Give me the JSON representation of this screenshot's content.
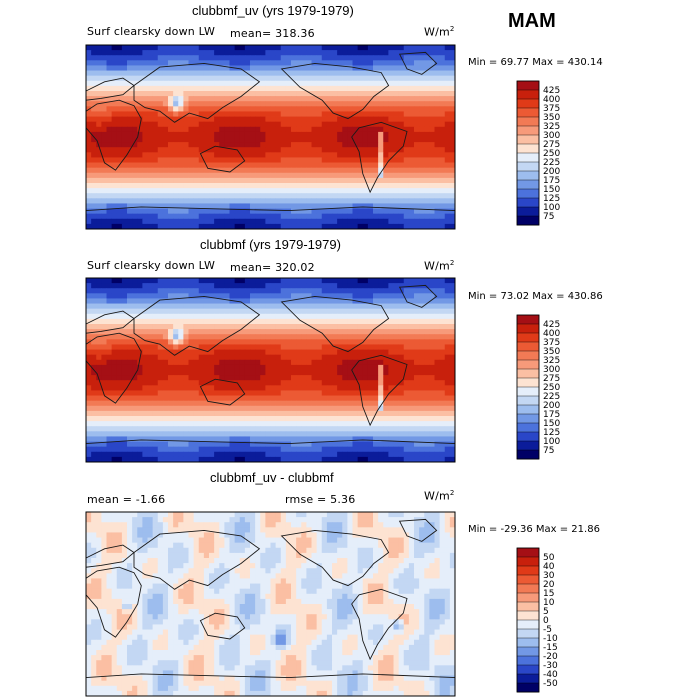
{
  "season": "MAM",
  "panels": [
    {
      "title": "clubbmf_uv (yrs 1979-1979)",
      "left_label": "Surf clearsky down LW",
      "stat_label": "mean= 318.36",
      "stat2_label": "",
      "units_base": "W/m",
      "units_exp": "2",
      "minmax": "Min =  69.77 Max = 430.14"
    },
    {
      "title": "clubbmf (yrs 1979-1979)",
      "left_label": "Surf clearsky down LW",
      "stat_label": "mean= 320.02",
      "stat2_label": "",
      "units_base": "W/m",
      "units_exp": "2",
      "minmax": "Min =  73.02 Max = 430.86"
    },
    {
      "title": "clubbmf_uv - clubbmf",
      "left_label": "mean =  -1.66",
      "stat_label": "rmse =   5.36",
      "stat2_label": "",
      "units_base": "W/m",
      "units_exp": "2",
      "minmax": "Min = -29.36 Max =  21.86"
    }
  ],
  "chart_data": [
    {
      "type": "heatmap",
      "title": "clubbmf_uv (yrs 1979-1979)",
      "variable": "Surf clearsky down LW",
      "units": "W/m2",
      "mean": 318.36,
      "min": 69.77,
      "max": 430.14,
      "colorbar_levels": [
        425,
        400,
        375,
        350,
        325,
        300,
        275,
        250,
        225,
        200,
        175,
        150,
        125,
        100,
        75
      ],
      "colorbar_colors": [
        "#a50f15",
        "#c8200c",
        "#e03a18",
        "#ec5a34",
        "#f27a55",
        "#f79a7a",
        "#fbbfa3",
        "#fde3d2",
        "#e5eefa",
        "#c3d7f3",
        "#9dbdee",
        "#7298e5",
        "#4c72dc",
        "#2a46c8",
        "#0b1c9a",
        "#000066"
      ]
    },
    {
      "type": "heatmap",
      "title": "clubbmf (yrs 1979-1979)",
      "variable": "Surf clearsky down LW",
      "units": "W/m2",
      "mean": 320.02,
      "min": 73.02,
      "max": 430.86,
      "colorbar_levels": [
        425,
        400,
        375,
        350,
        325,
        300,
        275,
        250,
        225,
        200,
        175,
        150,
        125,
        100,
        75
      ],
      "colorbar_colors": [
        "#a50f15",
        "#c8200c",
        "#e03a18",
        "#ec5a34",
        "#f27a55",
        "#f79a7a",
        "#fbbfa3",
        "#fde3d2",
        "#e5eefa",
        "#c3d7f3",
        "#9dbdee",
        "#7298e5",
        "#4c72dc",
        "#2a46c8",
        "#0b1c9a",
        "#000066"
      ]
    },
    {
      "type": "heatmap",
      "title": "clubbmf_uv - clubbmf",
      "units": "W/m2",
      "mean": -1.66,
      "rmse": 5.36,
      "min": -29.36,
      "max": 21.86,
      "colorbar_levels": [
        50,
        40,
        30,
        20,
        15,
        10,
        5,
        0,
        -5,
        -10,
        -15,
        -20,
        -30,
        -40,
        -50
      ],
      "colorbar_colors": [
        "#a50f15",
        "#c8200c",
        "#e03a18",
        "#ec5a34",
        "#f27a55",
        "#f79a7a",
        "#fbbfa3",
        "#fde3d2",
        "#e5eefa",
        "#c3d7f3",
        "#9dbdee",
        "#7298e5",
        "#4c72dc",
        "#2a46c8",
        "#0b1c9a",
        "#000066"
      ]
    }
  ]
}
